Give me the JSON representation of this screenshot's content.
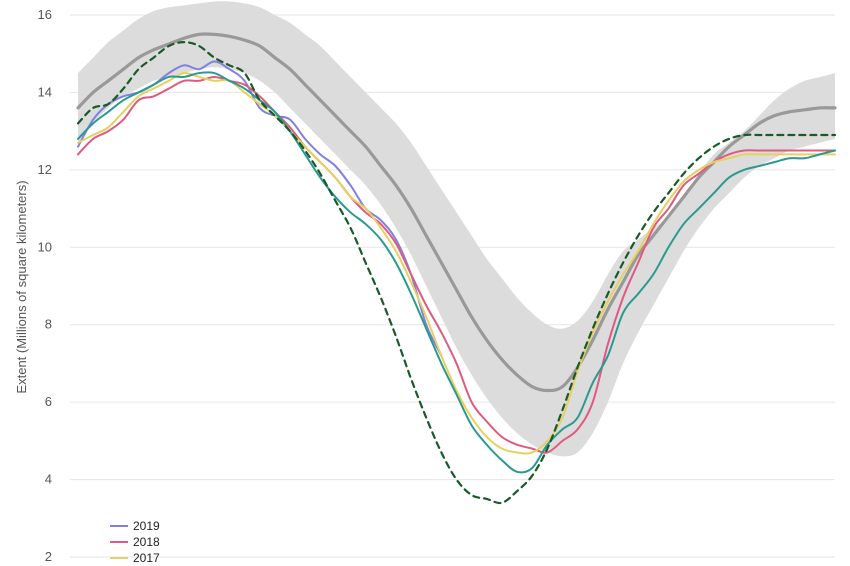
{
  "chart_data": {
    "type": "line",
    "ylabel": "Extent (Millions of square kilometers)",
    "ylim": [
      2,
      16
    ],
    "yticks": [
      "2",
      "4",
      "6",
      "8",
      "10",
      "12",
      "14",
      "16"
    ],
    "grid": true,
    "legend_position": "bottom-left",
    "legend": [
      {
        "label": "2019",
        "color": "#8080e0"
      },
      {
        "label": "2018",
        "color": "#e05a80"
      },
      {
        "label": "2017",
        "color": "#e8d060"
      }
    ],
    "x": [
      0,
      0.02,
      0.04,
      0.06,
      0.08,
      0.1,
      0.12,
      0.14,
      0.16,
      0.18,
      0.2,
      0.22,
      0.24,
      0.26,
      0.28,
      0.3,
      0.32,
      0.34,
      0.36,
      0.38,
      0.4,
      0.42,
      0.44,
      0.46,
      0.48,
      0.5,
      0.52,
      0.54,
      0.56,
      0.58,
      0.6,
      0.62,
      0.64,
      0.66,
      0.68,
      0.7,
      0.72,
      0.74,
      0.76,
      0.78,
      0.8,
      0.82,
      0.84,
      0.86,
      0.88,
      0.9,
      0.92,
      0.94,
      0.96,
      0.98,
      1.0
    ],
    "range_band": {
      "color": "#dcdcdc",
      "upper": [
        14.5,
        14.9,
        15.3,
        15.6,
        15.9,
        16.1,
        16.2,
        16.25,
        16.3,
        16.35,
        16.35,
        16.3,
        16.2,
        16.0,
        15.8,
        15.5,
        15.2,
        14.8,
        14.4,
        14.0,
        13.6,
        13.2,
        12.7,
        12.1,
        11.5,
        10.9,
        10.3,
        9.7,
        9.2,
        8.7,
        8.3,
        8.0,
        7.9,
        8.1,
        8.6,
        9.3,
        9.9,
        10.2,
        10.5,
        10.8,
        11.3,
        11.9,
        12.4,
        12.7,
        13.0,
        13.4,
        13.8,
        14.1,
        14.3,
        14.4,
        14.5
      ],
      "lower": [
        12.7,
        13.2,
        13.6,
        13.9,
        14.1,
        14.3,
        14.4,
        14.5,
        14.6,
        14.65,
        14.6,
        14.5,
        14.3,
        14.0,
        13.6,
        13.2,
        12.8,
        12.4,
        12.0,
        11.6,
        11.1,
        10.5,
        9.8,
        9.0,
        8.2,
        7.4,
        6.7,
        6.1,
        5.6,
        5.2,
        4.9,
        4.7,
        4.6,
        4.7,
        5.2,
        6.0,
        7.0,
        7.8,
        8.5,
        9.2,
        9.9,
        10.5,
        11.0,
        11.4,
        11.8,
        12.1,
        12.3,
        12.5,
        12.6,
        12.7,
        12.8
      ]
    },
    "series": [
      {
        "color": "#999999",
        "width": 3.2,
        "dash": "",
        "values": [
          13.6,
          14.0,
          14.3,
          14.6,
          14.9,
          15.1,
          15.25,
          15.4,
          15.5,
          15.5,
          15.45,
          15.35,
          15.2,
          14.9,
          14.6,
          14.2,
          13.8,
          13.4,
          13.0,
          12.6,
          12.1,
          11.6,
          11.0,
          10.3,
          9.6,
          8.9,
          8.2,
          7.6,
          7.1,
          6.7,
          6.4,
          6.3,
          6.4,
          6.9,
          7.6,
          8.4,
          9.1,
          9.8,
          10.3,
          10.8,
          11.3,
          11.8,
          12.2,
          12.6,
          12.9,
          13.2,
          13.4,
          13.5,
          13.55,
          13.6,
          13.6
        ]
      },
      {
        "name": "2019",
        "color": "#8080e0",
        "width": 2,
        "dash": "",
        "values": [
          12.6,
          13.3,
          13.7,
          13.9,
          14.0,
          14.2,
          14.5,
          14.7,
          14.6,
          14.8,
          14.6,
          14.3,
          13.6,
          13.4,
          13.3,
          12.8,
          12.4,
          12.1,
          11.6,
          11.0,
          10.7,
          10.2,
          9.3,
          8.0,
          7.2,
          null,
          null,
          null,
          null,
          null,
          null,
          null,
          null,
          null,
          null,
          null,
          null,
          null,
          null,
          null,
          null,
          null,
          null,
          null,
          null,
          null,
          null,
          null,
          null,
          null,
          null
        ]
      },
      {
        "name": "2018",
        "color": "#e05a80",
        "width": 2,
        "dash": "",
        "values": [
          12.4,
          12.8,
          13.0,
          13.3,
          13.8,
          13.9,
          14.1,
          14.3,
          14.3,
          14.4,
          14.3,
          14.2,
          13.9,
          13.5,
          13.1,
          12.6,
          12.2,
          11.8,
          11.3,
          10.9,
          10.6,
          10.1,
          9.3,
          8.5,
          7.8,
          7.0,
          6.0,
          5.5,
          5.1,
          4.9,
          4.8,
          4.7,
          5.0,
          5.3,
          6.0,
          7.5,
          8.7,
          9.6,
          10.5,
          11.0,
          11.6,
          11.9,
          12.2,
          12.4,
          12.5,
          12.5,
          12.5,
          12.5,
          12.5,
          12.5,
          12.5
        ]
      },
      {
        "name": "2017",
        "color": "#e8d060",
        "width": 2,
        "dash": "",
        "values": [
          12.7,
          12.9,
          13.1,
          13.5,
          13.9,
          14.1,
          14.3,
          14.5,
          14.4,
          14.3,
          14.3,
          14.0,
          13.7,
          13.4,
          13.0,
          12.6,
          12.2,
          11.8,
          11.3,
          11.0,
          10.5,
          9.9,
          9.1,
          8.2,
          7.2,
          6.3,
          5.6,
          5.1,
          4.8,
          4.7,
          4.7,
          5.0,
          5.6,
          6.8,
          7.8,
          8.6,
          9.3,
          9.9,
          10.6,
          11.2,
          11.7,
          12.0,
          12.2,
          12.3,
          12.4,
          12.4,
          12.4,
          12.4,
          12.4,
          12.4,
          12.4
        ]
      },
      {
        "color": "#2a9a90",
        "width": 2,
        "dash": "",
        "values": [
          12.8,
          13.2,
          13.5,
          13.8,
          14.0,
          14.2,
          14.4,
          14.4,
          14.5,
          14.5,
          14.3,
          14.1,
          13.8,
          13.5,
          13.0,
          12.4,
          11.8,
          11.3,
          10.9,
          10.6,
          10.2,
          9.6,
          8.8,
          7.9,
          7.0,
          6.2,
          5.4,
          4.9,
          4.5,
          4.2,
          4.3,
          4.9,
          5.3,
          5.6,
          6.5,
          7.2,
          8.3,
          8.8,
          9.3,
          10.0,
          10.6,
          11.0,
          11.4,
          11.8,
          12.0,
          12.1,
          12.2,
          12.3,
          12.3,
          12.4,
          12.5
        ]
      },
      {
        "color": "#1a5a2a",
        "width": 2.2,
        "dash": "6,5",
        "values": [
          13.2,
          13.6,
          13.7,
          14.1,
          14.6,
          14.9,
          15.2,
          15.3,
          15.2,
          14.9,
          14.7,
          14.5,
          13.8,
          13.4,
          13.0,
          12.5,
          11.9,
          11.2,
          10.5,
          9.6,
          8.7,
          7.7,
          6.6,
          5.6,
          4.7,
          4.0,
          3.6,
          3.5,
          3.4,
          3.7,
          4.1,
          4.8,
          5.8,
          6.9,
          7.9,
          8.8,
          9.6,
          10.3,
          10.9,
          11.4,
          11.9,
          12.3,
          12.6,
          12.8,
          12.9,
          12.9,
          12.9,
          12.9,
          12.9,
          12.9,
          12.9
        ]
      }
    ]
  }
}
